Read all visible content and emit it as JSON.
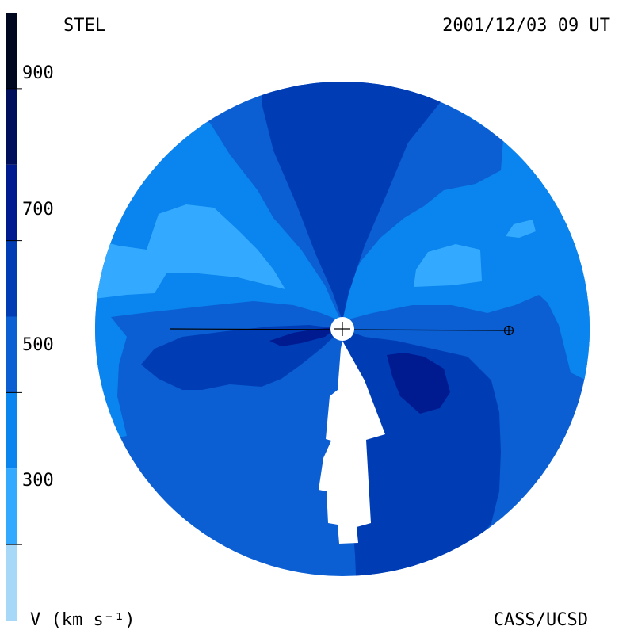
{
  "header": {
    "site": "STEL",
    "datetime": "2001/12/03 09 UT"
  },
  "footer": {
    "unit": "V (km s⁻¹)",
    "credit": "CASS/UCSD"
  },
  "colorbar": {
    "ticks": [
      {
        "label": "900",
        "value": 900
      },
      {
        "label": "700",
        "value": 700
      },
      {
        "label": "500",
        "value": 500
      },
      {
        "label": "300",
        "value": 300
      }
    ],
    "bands": [
      {
        "min": 200,
        "max": 300,
        "color": "#a7d8f7"
      },
      {
        "min": 300,
        "max": 400,
        "color": "#33aaff"
      },
      {
        "min": 400,
        "max": 500,
        "color": "#0a84ee"
      },
      {
        "min": 500,
        "max": 600,
        "color": "#0b5fd3"
      },
      {
        "min": 600,
        "max": 700,
        "color": "#003db5"
      },
      {
        "min": 700,
        "max": 800,
        "color": "#001a90"
      },
      {
        "min": 800,
        "max": 900,
        "color": "#000f5c"
      },
      {
        "min": 900,
        "max": 1000,
        "color": "#000820"
      }
    ],
    "range": [
      200,
      1000
    ]
  },
  "map": {
    "colors": {
      "lightest": "#33aaff",
      "light": "#0a84ee",
      "mid": "#0b5fd3",
      "dark": "#003db5",
      "darkest": "#001a90",
      "gap": "#ffffff",
      "line": "#000000"
    }
  }
}
